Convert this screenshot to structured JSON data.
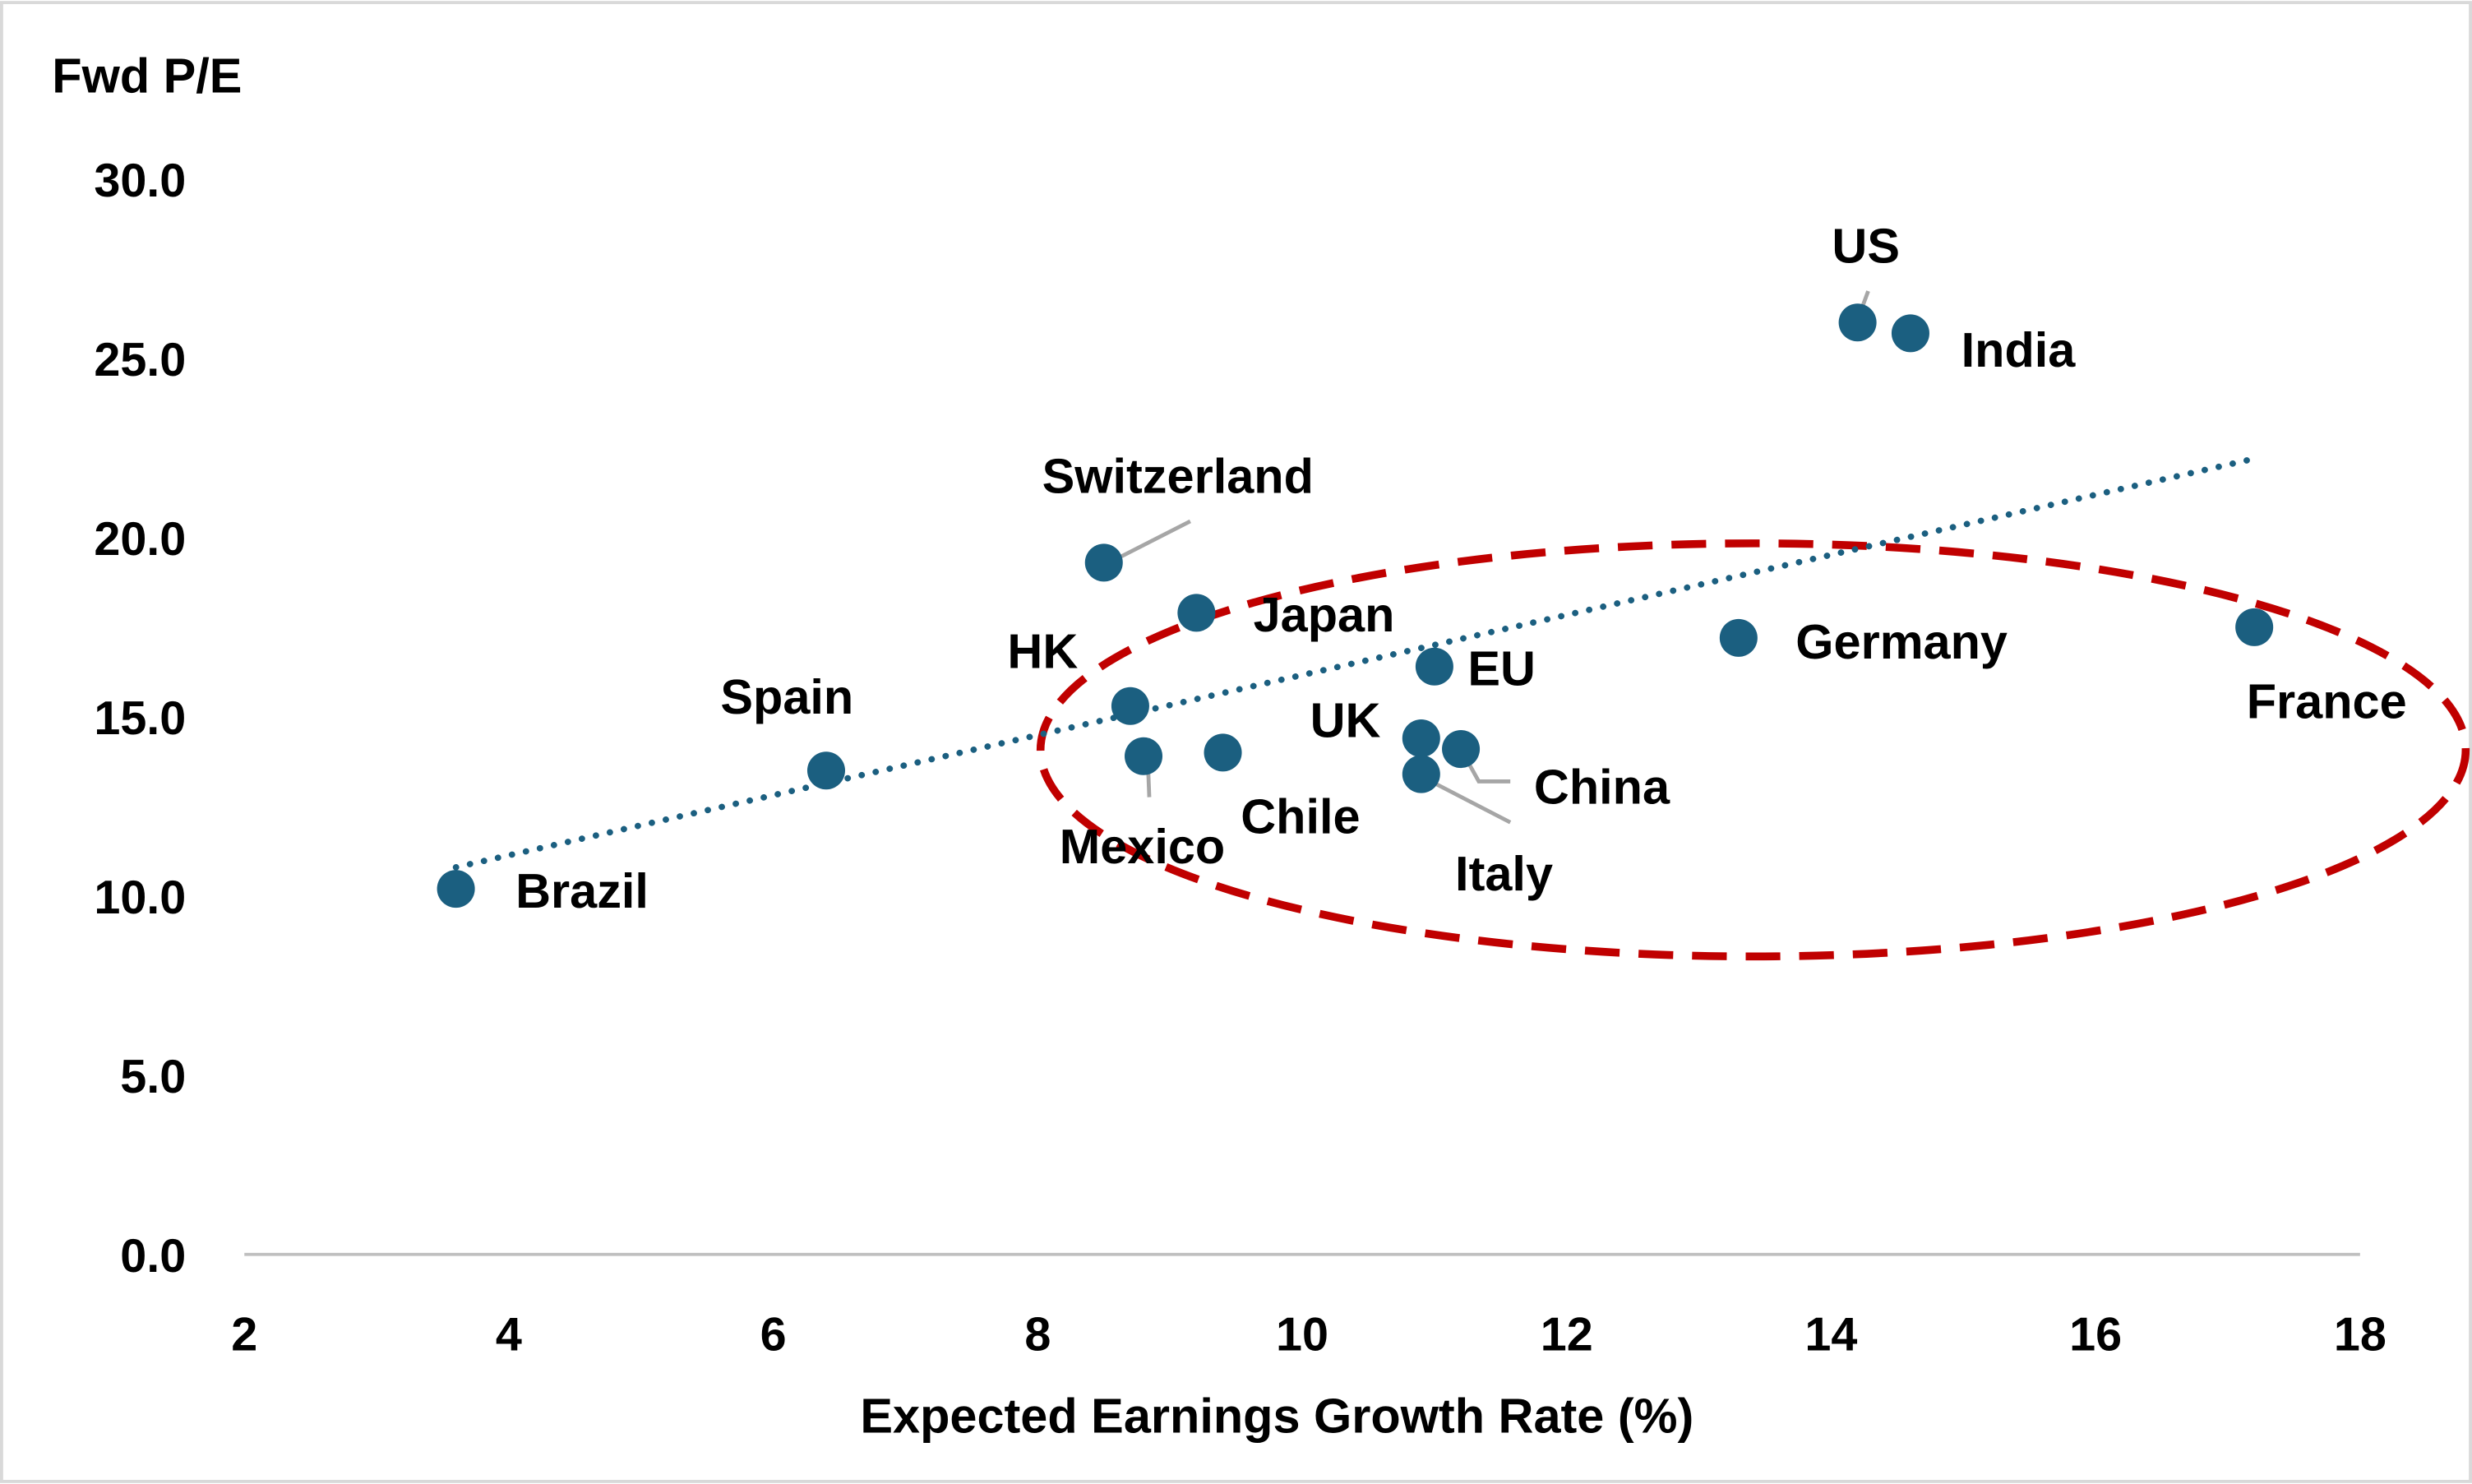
{
  "chart_data": {
    "type": "scatter",
    "title": "",
    "xlabel": "Expected Earnings Growth Rate (%)",
    "ylabel": "Fwd P/E",
    "xlim": [
      2,
      18
    ],
    "ylim": [
      0,
      30
    ],
    "xticks": [
      "2",
      "4",
      "6",
      "8",
      "10",
      "12",
      "14",
      "16",
      "18"
    ],
    "yticks": [
      "0.0",
      "5.0",
      "10.0",
      "15.0",
      "20.0",
      "25.0",
      "30.0"
    ],
    "grid": false,
    "legend": "none",
    "points": [
      {
        "label": "Brazil",
        "x": 3.6,
        "y": 10.2
      },
      {
        "label": "Spain",
        "x": 6.4,
        "y": 13.5
      },
      {
        "label": "Switzerland",
        "x": 8.5,
        "y": 19.3
      },
      {
        "label": "Japan",
        "x": 9.2,
        "y": 17.9
      },
      {
        "label": "HK",
        "x": 8.7,
        "y": 15.3
      },
      {
        "label": "Mexico",
        "x": 8.8,
        "y": 13.9
      },
      {
        "label": "Chile",
        "x": 9.4,
        "y": 14.0
      },
      {
        "label": "EU",
        "x": 11.0,
        "y": 16.4
      },
      {
        "label": "UK",
        "x": 10.9,
        "y": 14.4
      },
      {
        "label": "Italy",
        "x": 10.9,
        "y": 13.4
      },
      {
        "label": "China",
        "x": 11.2,
        "y": 14.1
      },
      {
        "label": "Germany",
        "x": 13.3,
        "y": 17.2
      },
      {
        "label": "France",
        "x": 17.2,
        "y": 17.5
      },
      {
        "label": "US",
        "x": 14.2,
        "y": 26.0
      },
      {
        "label": "India",
        "x": 14.6,
        "y": 25.7
      }
    ],
    "trendline": {
      "type": "linear",
      "style": "dotted",
      "from": {
        "x": 3.6,
        "y": 10.8
      },
      "to": {
        "x": 17.2,
        "y": 22.2
      }
    },
    "annotation": {
      "shape": "dashed-ellipse",
      "color": "#C00000"
    },
    "colors": {
      "points": "#1B5F80",
      "trendline": "#1B5F80",
      "ellipse": "#C00000",
      "axis": "#BFBFBF",
      "leader": "#A6A6A6"
    }
  }
}
